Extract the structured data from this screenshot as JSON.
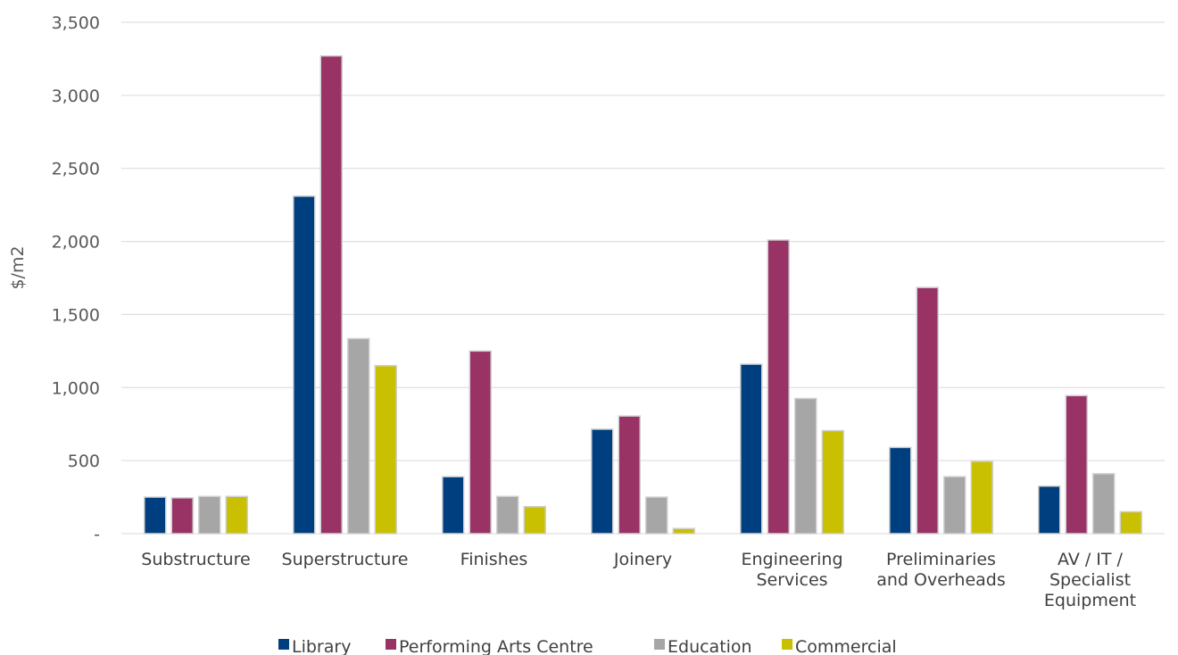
{
  "chart_data": {
    "type": "bar",
    "title": "",
    "xlabel": "",
    "ylabel": "$/m2",
    "ylim": [
      0,
      3500
    ],
    "yticks": [
      0,
      500,
      1000,
      1500,
      2000,
      2500,
      3000,
      3500
    ],
    "ytick_labels": [
      "-",
      "500",
      "1,000",
      "1,500",
      "2,000",
      "2,500",
      "3,000",
      "3,500"
    ],
    "grid": true,
    "legend_position": "bottom",
    "categories": [
      [
        "Substructure"
      ],
      [
        "Superstructure"
      ],
      [
        "Finishes"
      ],
      [
        "Joinery"
      ],
      [
        "Engineering",
        "Services"
      ],
      [
        "Preliminaries",
        "and Overheads"
      ],
      [
        "AV / IT /",
        "Specialist",
        "Equipment"
      ]
    ],
    "series": [
      {
        "name": "Library",
        "color": "#003f7f",
        "values": [
          250,
          2310,
          390,
          715,
          1160,
          590,
          325
        ]
      },
      {
        "name": "Performing Arts Centre",
        "color": "#993366",
        "values": [
          245,
          3270,
          1250,
          805,
          2010,
          1685,
          945
        ]
      },
      {
        "name": "Education",
        "color": "#a6a6a6",
        "values": [
          255,
          1335,
          255,
          250,
          925,
          390,
          410
        ]
      },
      {
        "name": "Commercial",
        "color": "#c8c000",
        "values": [
          255,
          1150,
          185,
          35,
          705,
          495,
          150
        ]
      }
    ]
  }
}
